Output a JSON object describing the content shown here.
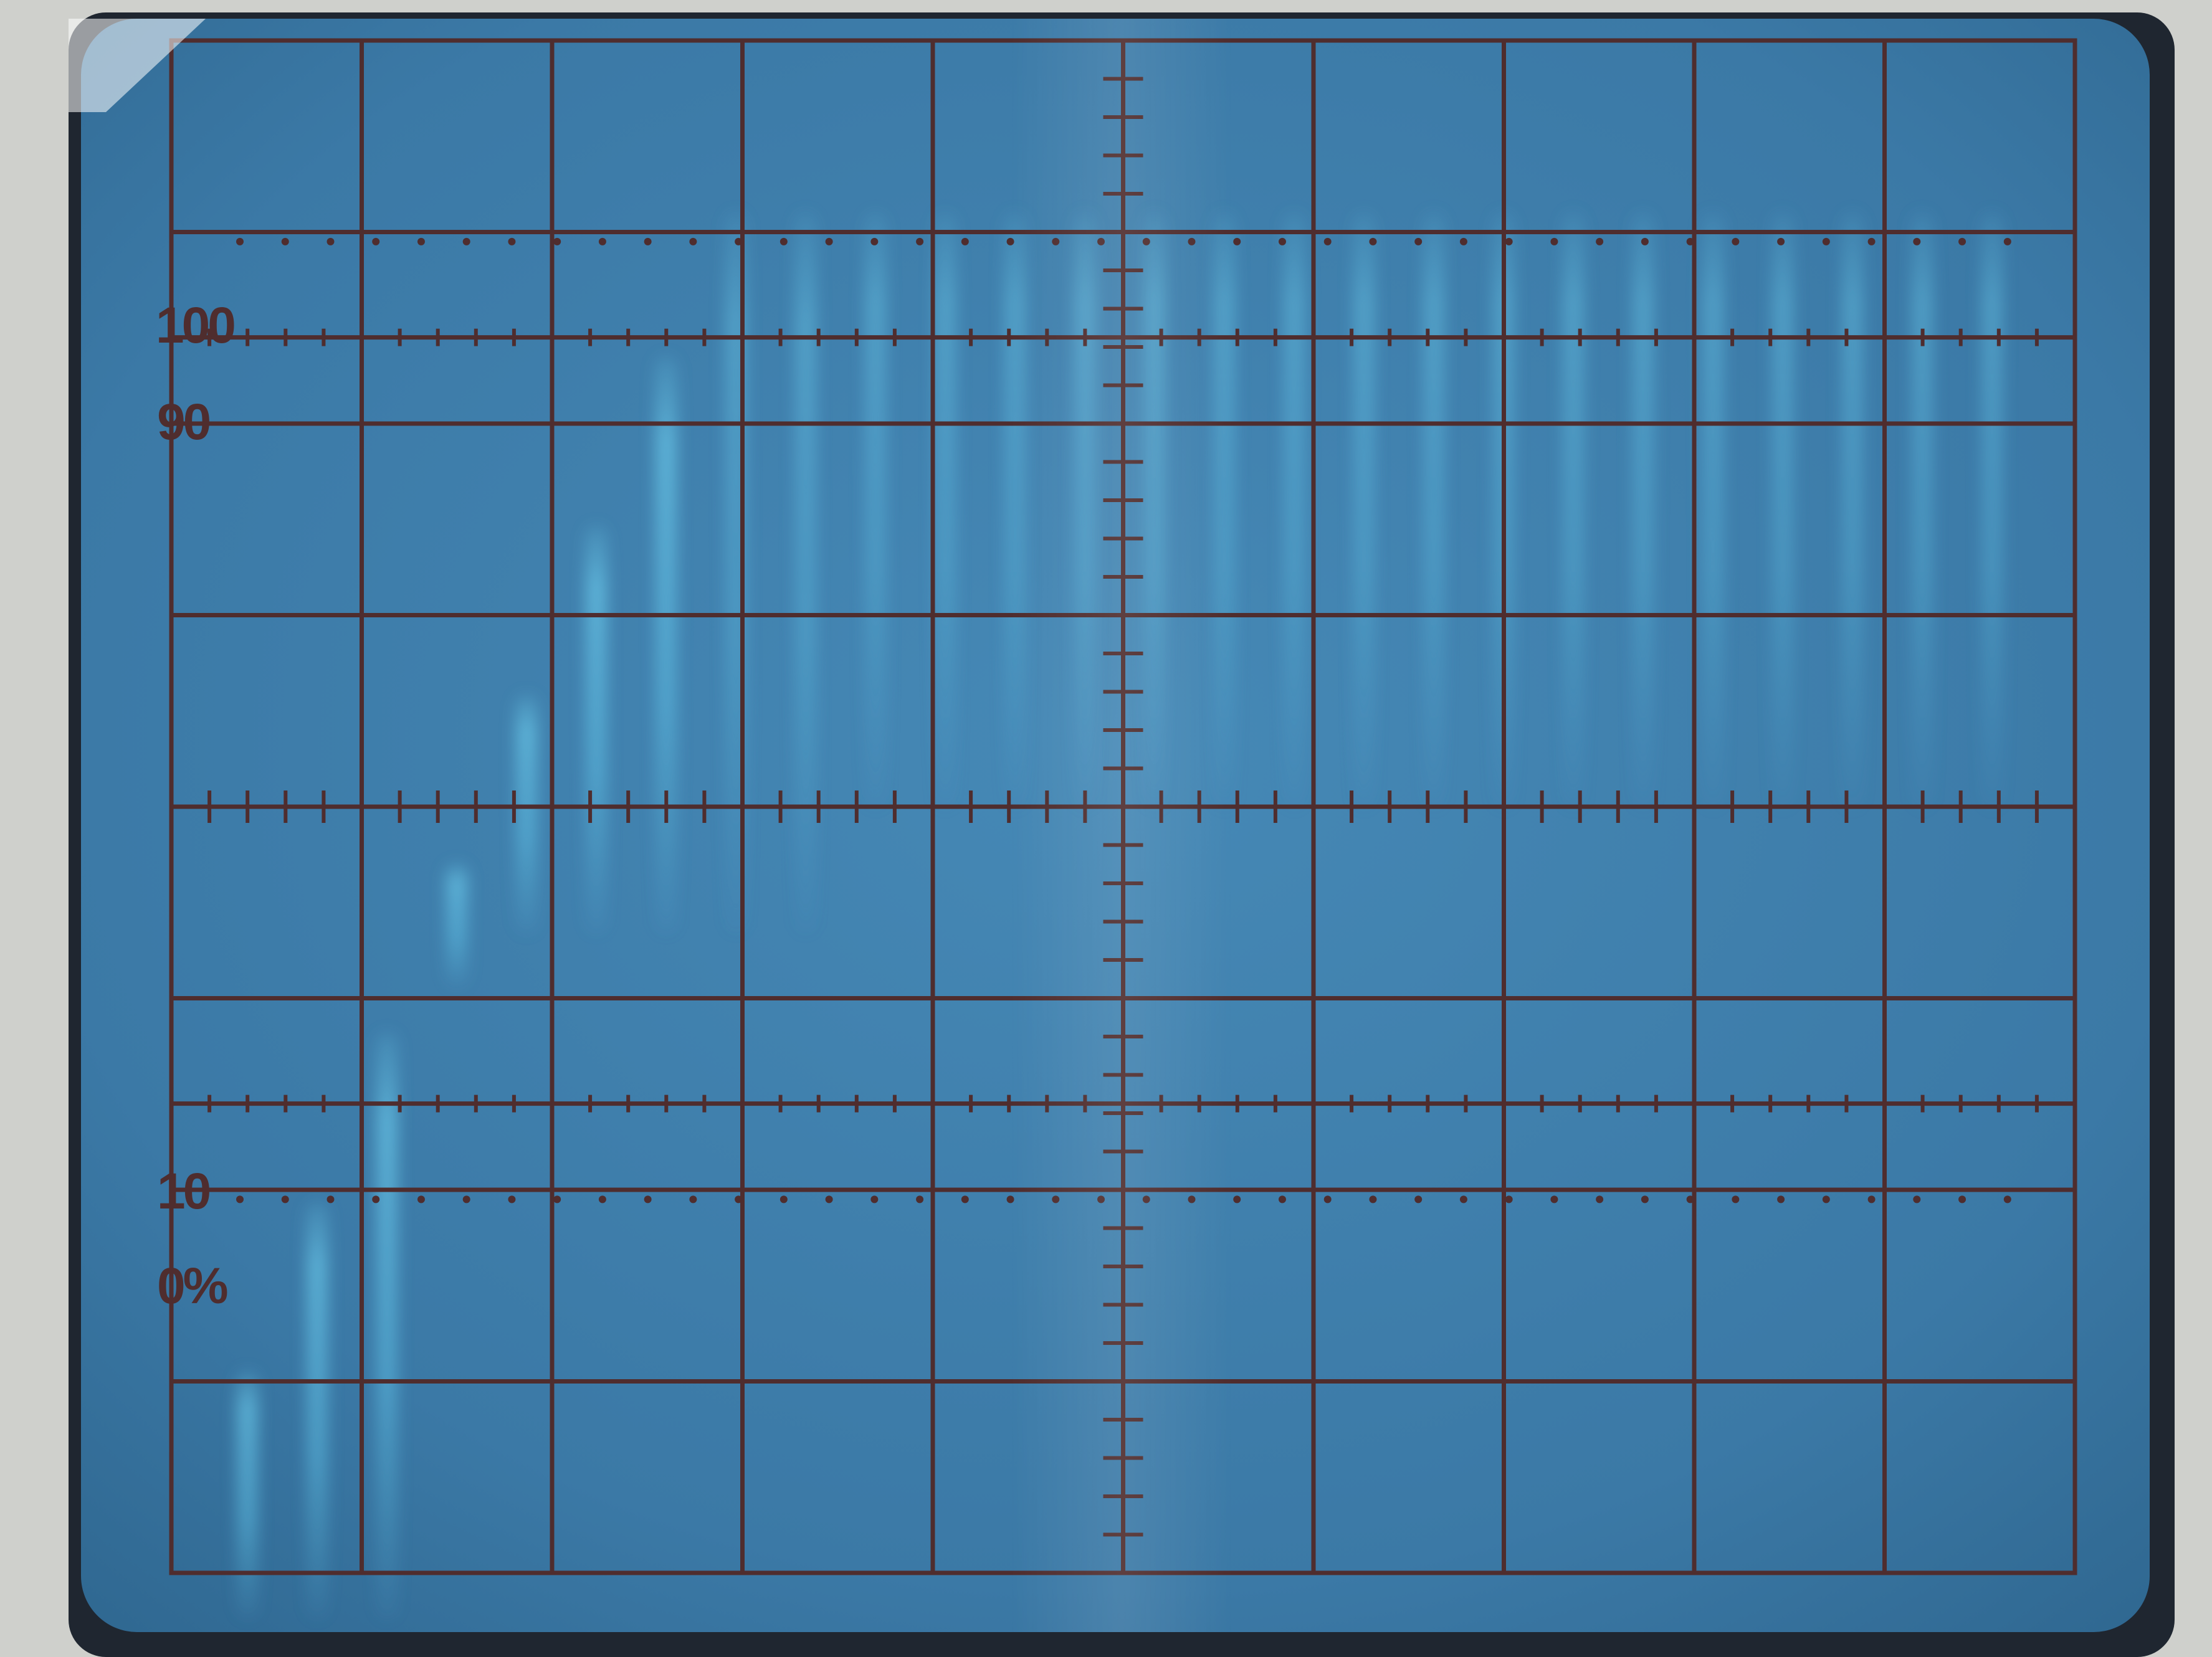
{
  "graticule": {
    "labels": [
      {
        "id": "label-100",
        "text": "100"
      },
      {
        "id": "label-90",
        "text": "90"
      },
      {
        "id": "label-10",
        "text": "10"
      },
      {
        "id": "label-0",
        "text": "0%"
      }
    ]
  },
  "colors": {
    "bezel": "#cfd0cc",
    "screen": "#3f80ac",
    "grid": "#4f2d2e",
    "trace": "#63c8ec"
  }
}
